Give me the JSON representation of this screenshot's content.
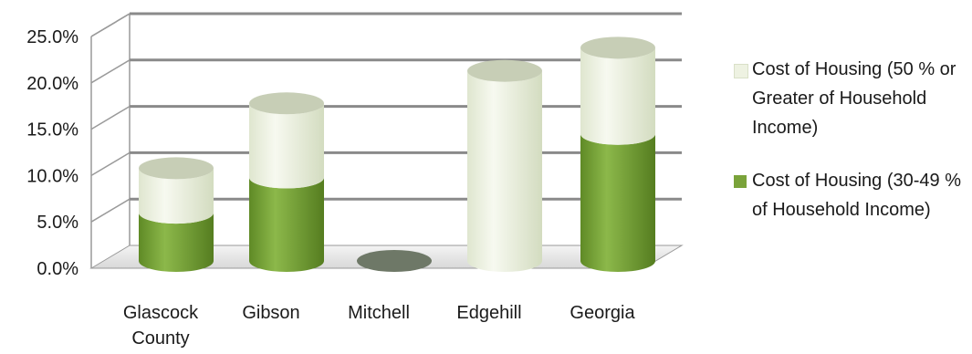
{
  "chart_data": {
    "type": "bar",
    "subtype": "stacked-3d-cylinder",
    "categories": [
      "Glascock County",
      "Gibson",
      "Mitchell",
      "Edgehill",
      "Georgia"
    ],
    "series": [
      {
        "name": "Cost of Housing (30-49 % of Household Income)",
        "color": "#7aa33a",
        "values": [
          5.2,
          9.0,
          0.0,
          0.0,
          13.7
        ]
      },
      {
        "name": "Cost of Housing (50 % or Greater of Household Income)",
        "color": "#eef2e2",
        "values": [
          4.8,
          8.0,
          0.0,
          20.5,
          9.3
        ]
      }
    ],
    "yticks": [
      "0.0%",
      "5.0%",
      "10.0%",
      "15.0%",
      "20.0%",
      "25.0%"
    ],
    "ylim": [
      0,
      25
    ],
    "grid": true,
    "legend_position": "right"
  }
}
